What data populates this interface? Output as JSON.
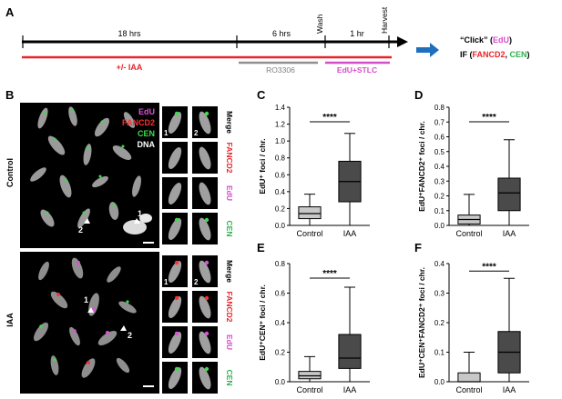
{
  "panels": {
    "A": {
      "label": "A",
      "durations": [
        "18 hrs",
        "6 hrs",
        "1 hr"
      ],
      "events": [
        "Wash",
        "Harvest"
      ],
      "treatments": [
        "+/- IAA",
        "RO3306",
        "EdU+STLC"
      ],
      "treatment_colors": [
        "#e8232a",
        "#909090",
        "#d64fc9"
      ],
      "readout": {
        "line1_prefix": "“Click” (",
        "line1_edu": "EdU",
        "line1_suffix": ")",
        "line2_prefix": "IF (",
        "line2_fancd2": "FANCD2",
        "line2_sep": ", ",
        "line2_cen": "CEN",
        "line2_suffix": ")"
      },
      "arrow_color": "#1f6fbf"
    },
    "B": {
      "label": "B",
      "legend": [
        {
          "text": "EdU",
          "color": "#e04fd8"
        },
        {
          "text": "FANCD2",
          "color": "#ff3030"
        },
        {
          "text": "CEN",
          "color": "#3ddc4a"
        },
        {
          "text": "DNA",
          "color": "#ffffff"
        }
      ],
      "row_labels": [
        "Control",
        "IAA"
      ],
      "arrow_labels": [
        "1",
        "2"
      ],
      "inset_tags": [
        "1",
        "2"
      ],
      "strip_labels": [
        {
          "text": "Merge",
          "color": "#000000"
        },
        {
          "text": "FANCD2",
          "color": "#e8232a"
        },
        {
          "text": "EdU",
          "color": "#d64fc9"
        },
        {
          "text": "CEN",
          "color": "#2bb24c"
        }
      ]
    }
  },
  "chart_data": [
    {
      "panel": "C",
      "type": "box",
      "ylabel": "EdU⁺ foci / chr.",
      "ylim": [
        0.0,
        1.4
      ],
      "yticks": [
        "0.0",
        "0.2",
        "0.4",
        "0.6",
        "0.8",
        "1.0",
        "1.2",
        "1.4"
      ],
      "categories": [
        "Control",
        "IAA"
      ],
      "boxes": [
        {
          "min": 0.0,
          "q1": 0.08,
          "median": 0.14,
          "q3": 0.22,
          "max": 0.37,
          "color": "#c8c8c8"
        },
        {
          "min": 0.0,
          "q1": 0.28,
          "median": 0.52,
          "q3": 0.76,
          "max": 1.09,
          "color": "#4a4a4a"
        }
      ],
      "significance": "****"
    },
    {
      "panel": "D",
      "type": "box",
      "ylabel": "EdU⁺FANCD2⁺ foci / chr.",
      "ylim": [
        0.0,
        0.8
      ],
      "yticks": [
        "0.0",
        "0.1",
        "0.2",
        "0.3",
        "0.4",
        "0.5",
        "0.6",
        "0.7",
        "0.8"
      ],
      "categories": [
        "Control",
        "IAA"
      ],
      "boxes": [
        {
          "min": 0.0,
          "q1": 0.01,
          "median": 0.04,
          "q3": 0.07,
          "max": 0.21,
          "color": "#c8c8c8"
        },
        {
          "min": 0.0,
          "q1": 0.1,
          "median": 0.22,
          "q3": 0.32,
          "max": 0.58,
          "color": "#4a4a4a"
        }
      ],
      "significance": "****"
    },
    {
      "panel": "E",
      "type": "box",
      "ylabel": "EdU⁺CEN⁺ foci / chr.",
      "ylim": [
        0.0,
        0.8
      ],
      "yticks": [
        "0.0",
        "0.2",
        "0.4",
        "0.6",
        "0.8"
      ],
      "categories": [
        "Control",
        "IAA"
      ],
      "boxes": [
        {
          "min": 0.0,
          "q1": 0.02,
          "median": 0.04,
          "q3": 0.07,
          "max": 0.17,
          "color": "#c8c8c8"
        },
        {
          "min": 0.0,
          "q1": 0.09,
          "median": 0.16,
          "q3": 0.32,
          "max": 0.64,
          "color": "#4a4a4a"
        }
      ],
      "significance": "****"
    },
    {
      "panel": "F",
      "type": "box",
      "ylabel": "EdU⁺CEN⁺FANCD2⁺ foci / chr.",
      "ylim": [
        0.0,
        0.4
      ],
      "yticks": [
        "0.0",
        "0.1",
        "0.2",
        "0.3",
        "0.4"
      ],
      "categories": [
        "Control",
        "IAA"
      ],
      "boxes": [
        {
          "min": 0.0,
          "q1": 0.0,
          "median": 0.0,
          "q3": 0.03,
          "max": 0.1,
          "color": "#c8c8c8"
        },
        {
          "min": 0.0,
          "q1": 0.03,
          "median": 0.1,
          "q3": 0.17,
          "max": 0.35,
          "color": "#4a4a4a"
        }
      ],
      "significance": "****"
    }
  ]
}
